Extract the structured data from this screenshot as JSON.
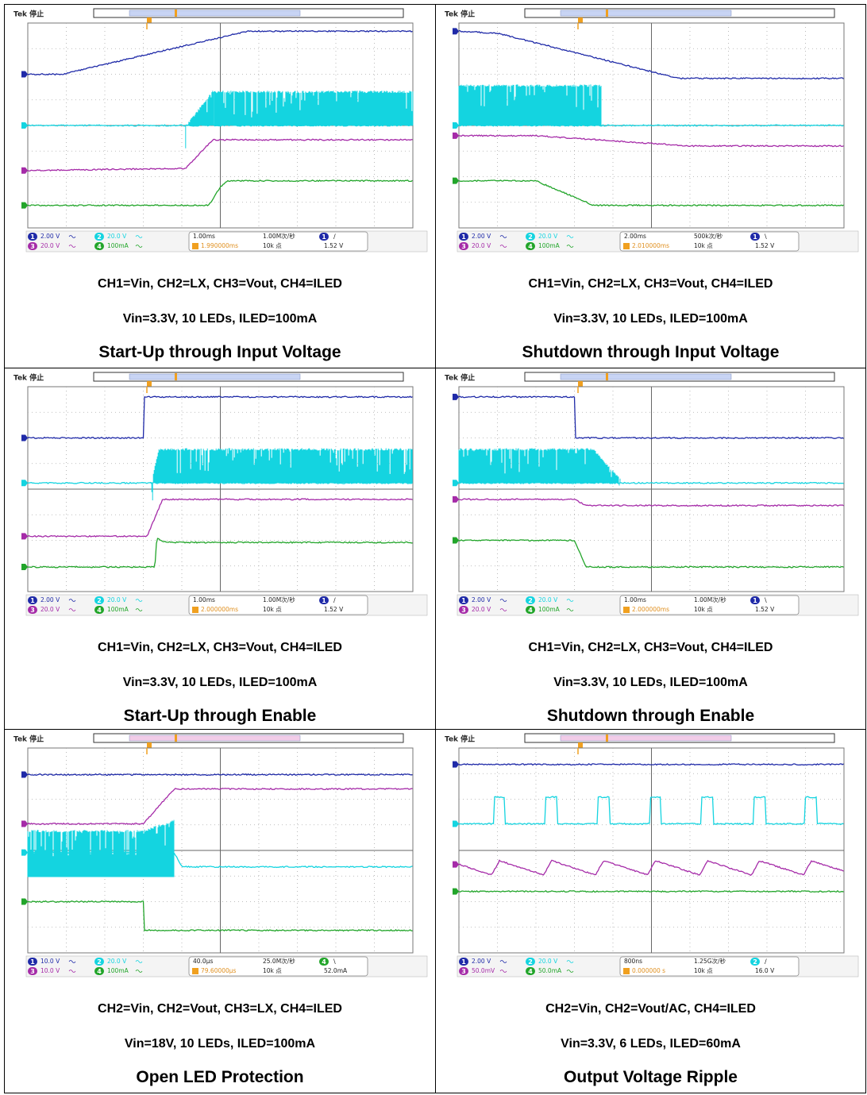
{
  "panels": [
    {
      "scope": {
        "status": "Tek 停止",
        "channels": [
          {
            "id": "1",
            "scale": "2.00 V"
          },
          {
            "id": "2",
            "scale": "20.0 V"
          },
          {
            "id": "3",
            "scale": "20.0 V"
          },
          {
            "id": "4",
            "scale": "100mA"
          }
        ],
        "timebase": "1.00ms",
        "trigger_position": "1.990000ms",
        "sample_rate": "1.00M次/秒",
        "record_length": "10k 点",
        "trigger_channel": "1",
        "trigger_slope": "/",
        "trigger_level": "1.52 V"
      },
      "captions": [
        "CH1=Vin, CH2=LX, CH3=Vout, CH4=ILED",
        "Vin=3.3V, 10 LEDs, ILED=100mA",
        "Start-Up through Input Voltage"
      ]
    },
    {
      "scope": {
        "status": "Tek 停止",
        "channels": [
          {
            "id": "1",
            "scale": "2.00 V"
          },
          {
            "id": "2",
            "scale": "20.0 V"
          },
          {
            "id": "3",
            "scale": "20.0 V"
          },
          {
            "id": "4",
            "scale": "100mA"
          }
        ],
        "timebase": "2.00ms",
        "trigger_position": "2.010000ms",
        "sample_rate": "500k次/秒",
        "record_length": "10k 点",
        "trigger_channel": "1",
        "trigger_slope": "\\",
        "trigger_level": "1.52 V"
      },
      "captions": [
        "CH1=Vin, CH2=LX, CH3=Vout, CH4=ILED",
        "Vin=3.3V, 10 LEDs, ILED=100mA",
        "Shutdown through Input Voltage"
      ]
    },
    {
      "scope": {
        "status": "Tek 停止",
        "channels": [
          {
            "id": "1",
            "scale": "2.00 V"
          },
          {
            "id": "2",
            "scale": "20.0 V"
          },
          {
            "id": "3",
            "scale": "20.0 V"
          },
          {
            "id": "4",
            "scale": "100mA"
          }
        ],
        "timebase": "1.00ms",
        "trigger_position": "2.000000ms",
        "sample_rate": "1.00M次/秒",
        "record_length": "10k 点",
        "trigger_channel": "1",
        "trigger_slope": "/",
        "trigger_level": "1.52 V"
      },
      "captions": [
        "CH1=Vin, CH2=LX, CH3=Vout, CH4=ILED",
        "Vin=3.3V, 10 LEDs, ILED=100mA",
        "Start-Up through Enable"
      ]
    },
    {
      "scope": {
        "status": "Tek 停止",
        "channels": [
          {
            "id": "1",
            "scale": "2.00 V"
          },
          {
            "id": "2",
            "scale": "20.0 V"
          },
          {
            "id": "3",
            "scale": "20.0 V"
          },
          {
            "id": "4",
            "scale": "100mA"
          }
        ],
        "timebase": "1.00ms",
        "trigger_position": "2.000000ms",
        "sample_rate": "1.00M次/秒",
        "record_length": "10k 点",
        "trigger_channel": "1",
        "trigger_slope": "\\",
        "trigger_level": "1.52 V"
      },
      "captions": [
        "CH1=Vin, CH2=LX, CH3=Vout, CH4=ILED",
        "Vin=3.3V, 10 LEDs, ILED=100mA",
        "Shutdown through Enable"
      ]
    },
    {
      "scope": {
        "status": "Tek 停止",
        "channels": [
          {
            "id": "1",
            "scale": "10.0 V"
          },
          {
            "id": "2",
            "scale": "20.0 V"
          },
          {
            "id": "3",
            "scale": "10.0 V"
          },
          {
            "id": "4",
            "scale": "100mA"
          }
        ],
        "timebase": "40.0µs",
        "trigger_position": "79.60000µs",
        "sample_rate": "25.0M次/秒",
        "record_length": "10k 点",
        "trigger_channel": "4",
        "trigger_slope": "\\",
        "trigger_level": "52.0mA"
      },
      "captions": [
        "CH2=Vin, CH2=Vout, CH3=LX, CH4=ILED",
        "Vin=18V, 10 LEDs, ILED=100mA",
        "Open LED Protection"
      ]
    },
    {
      "scope": {
        "status": "Tek 停止",
        "channels": [
          {
            "id": "1",
            "scale": "2.00 V"
          },
          {
            "id": "2",
            "scale": "20.0 V"
          },
          {
            "id": "3",
            "scale": "50.0mV"
          },
          {
            "id": "4",
            "scale": "50.0mA"
          }
        ],
        "timebase": "800ns",
        "trigger_position": "0.000000 s",
        "sample_rate": "1.25G次/秒",
        "record_length": "10k 点",
        "trigger_channel": "2",
        "trigger_slope": "/",
        "trigger_level": "16.0 V"
      },
      "captions": [
        "CH2=Vin, CH2=Vout/AC, CH4=ILED",
        "Vin=3.3V, 6 LEDs, ILED=60mA",
        "Output Voltage Ripple"
      ]
    }
  ]
}
